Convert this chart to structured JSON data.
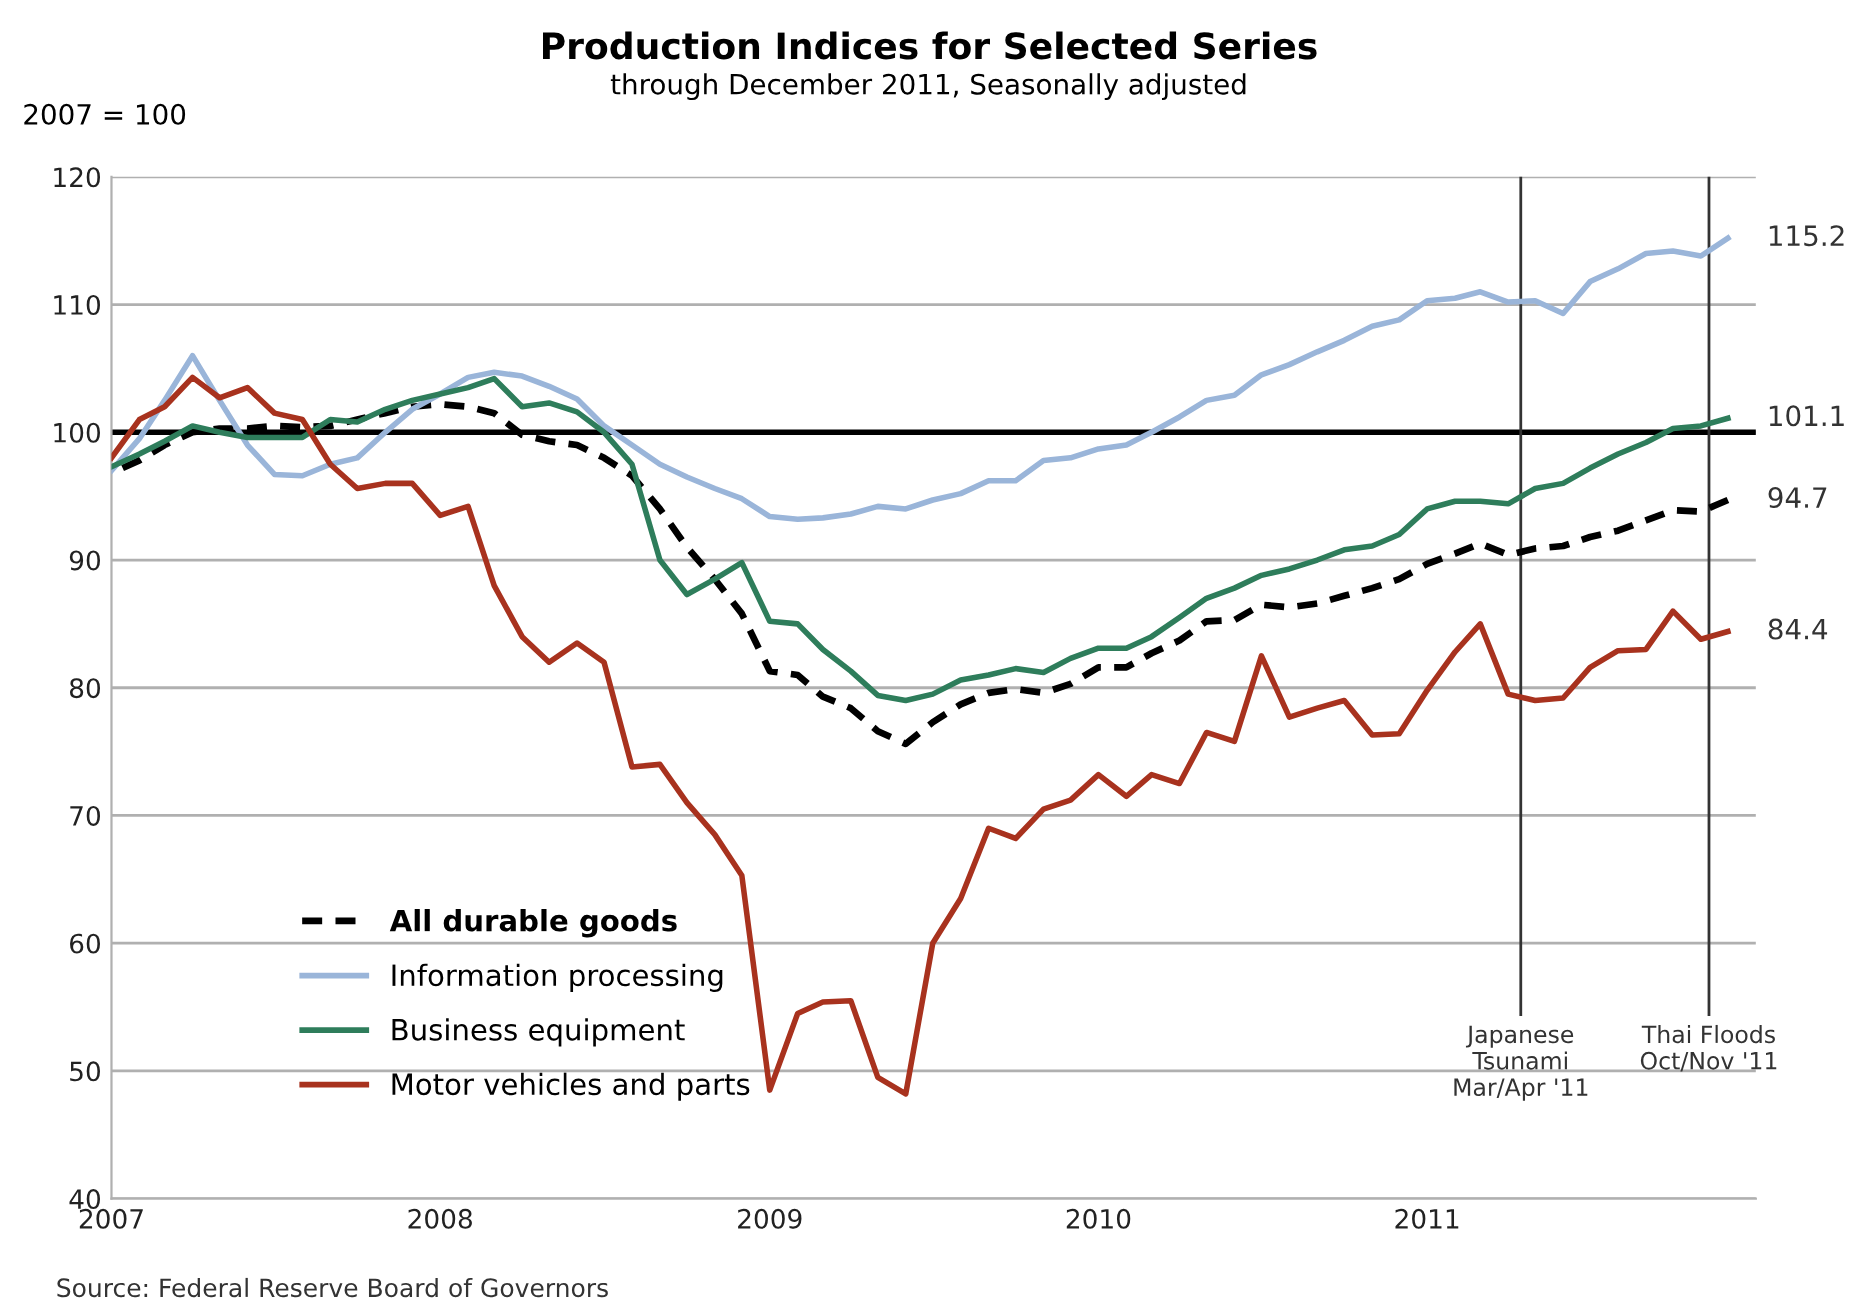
{
  "chart_data": {
    "type": "line",
    "title": "Production Indices for Selected Series",
    "subtitle": "through December 2011, Seasonally adjusted",
    "ylabel": "2007 = 100",
    "annotations": [
      "Source: Federal Reserve Board of Governors"
    ],
    "x": [
      "2007-01",
      "2007-02",
      "2007-03",
      "2007-04",
      "2007-05",
      "2007-06",
      "2007-07",
      "2007-08",
      "2007-09",
      "2007-10",
      "2007-11",
      "2007-12",
      "2008-01",
      "2008-02",
      "2008-03",
      "2008-04",
      "2008-05",
      "2008-06",
      "2008-07",
      "2008-08",
      "2008-09",
      "2008-10",
      "2008-11",
      "2008-12",
      "2009-01",
      "2009-02",
      "2009-03",
      "2009-04",
      "2009-05",
      "2009-06",
      "2009-07",
      "2009-08",
      "2009-09",
      "2009-10",
      "2009-11",
      "2009-12",
      "2010-01",
      "2010-02",
      "2010-03",
      "2010-04",
      "2010-05",
      "2010-06",
      "2010-07",
      "2010-08",
      "2010-09",
      "2010-10",
      "2010-11",
      "2010-12",
      "2011-01",
      "2011-02",
      "2011-03",
      "2011-04",
      "2011-05",
      "2011-06",
      "2011-07",
      "2011-08",
      "2011-09",
      "2011-10",
      "2011-11",
      "2011-12"
    ],
    "series": [
      {
        "name": "All durable goods",
        "color": "#000000",
        "line_style": "dashed",
        "values": [
          96.8,
          97.8,
          99,
          100,
          100.3,
          100.3,
          100.5,
          100.4,
          100.5,
          101,
          101.5,
          102,
          102.2,
          102,
          101.5,
          99.8,
          99.3,
          99,
          98,
          96.6,
          94,
          91,
          88.5,
          85.8,
          81.3,
          81,
          79.3,
          78.4,
          76.6,
          75.6,
          77.3,
          78.7,
          79.6,
          79.9,
          79.6,
          80.3,
          81.6,
          81.6,
          82.7,
          83.7,
          85.2,
          85.3,
          86.5,
          86.3,
          86.6,
          87.2,
          87.8,
          88.5,
          89.7,
          90.5,
          91.3,
          90.4,
          90.9,
          91.1,
          91.8,
          92.3,
          93.1,
          93.9,
          93.8,
          94.7
        ],
        "value_labels": [
          null,
          null,
          null,
          null,
          null,
          null,
          null,
          null,
          null,
          null,
          null,
          null,
          null,
          null,
          null,
          null,
          null,
          null,
          null,
          null,
          null,
          null,
          null,
          null,
          null,
          null,
          null,
          null,
          null,
          null,
          null,
          null,
          null,
          null,
          null,
          null,
          null,
          null,
          null,
          null,
          null,
          null,
          null,
          null,
          null,
          null,
          null,
          null,
          null,
          null,
          null,
          null,
          null,
          null,
          null,
          null,
          null,
          null,
          null,
          "94.7"
        ]
      },
      {
        "name": "Information processing",
        "color": "#9ab5d9",
        "line_style": "solid",
        "values": [
          97,
          99.5,
          102.5,
          106,
          102.5,
          99,
          96.7,
          96.6,
          97.5,
          98,
          100,
          101.8,
          103,
          104.3,
          104.7,
          104.4,
          103.6,
          102.6,
          100.5,
          99,
          97.5,
          96.5,
          95.6,
          94.8,
          93.4,
          93.2,
          93.3,
          93.6,
          94.2,
          94,
          94.7,
          95.2,
          96.2,
          96.2,
          97.8,
          98,
          98.7,
          99,
          100,
          101.2,
          102.5,
          102.9,
          104.5,
          105.3,
          106.3,
          107.2,
          108.3,
          108.8,
          110.3,
          110.5,
          111,
          110.2,
          110.3,
          109.3,
          111.8,
          112.8,
          114,
          114.2,
          113.8,
          115.2
        ],
        "value_labels": [
          null,
          null,
          null,
          null,
          null,
          null,
          null,
          null,
          null,
          null,
          null,
          null,
          null,
          null,
          null,
          null,
          null,
          null,
          null,
          null,
          null,
          null,
          null,
          null,
          null,
          null,
          null,
          null,
          null,
          null,
          null,
          null,
          null,
          null,
          null,
          null,
          null,
          null,
          null,
          null,
          null,
          null,
          null,
          null,
          null,
          null,
          null,
          null,
          null,
          null,
          null,
          null,
          null,
          null,
          null,
          null,
          null,
          null,
          null,
          "115.2"
        ]
      },
      {
        "name": "Business equipment",
        "color": "#2e7d5b",
        "line_style": "solid",
        "values": [
          97.3,
          98.3,
          99.3,
          100.5,
          100,
          99.6,
          99.6,
          99.6,
          101,
          100.8,
          101.8,
          102.5,
          103,
          103.5,
          104.2,
          102,
          102.3,
          101.6,
          100,
          97.5,
          90,
          87.3,
          88.5,
          89.8,
          85.2,
          85,
          83,
          81.3,
          79.4,
          79,
          79.5,
          80.6,
          81,
          81.5,
          81.2,
          82.3,
          83.1,
          83.1,
          84,
          85.5,
          87,
          87.8,
          88.8,
          89.3,
          90,
          90.8,
          91.1,
          92,
          94,
          94.6,
          94.6,
          94.4,
          95.6,
          96,
          97.2,
          98.3,
          99.2,
          100.3,
          100.5,
          101.1
        ],
        "value_labels": [
          null,
          null,
          null,
          null,
          null,
          null,
          null,
          null,
          null,
          null,
          null,
          null,
          null,
          null,
          null,
          null,
          null,
          null,
          null,
          null,
          null,
          null,
          null,
          null,
          null,
          null,
          null,
          null,
          null,
          null,
          null,
          null,
          null,
          null,
          null,
          null,
          null,
          null,
          null,
          null,
          null,
          null,
          null,
          null,
          null,
          null,
          null,
          null,
          null,
          null,
          null,
          null,
          null,
          null,
          null,
          null,
          null,
          null,
          null,
          "101.1"
        ]
      },
      {
        "name": "Motor vehicles and parts",
        "color": "#a8321e",
        "line_style": "solid",
        "values": [
          98,
          101,
          102,
          104.3,
          102.7,
          103.5,
          101.5,
          101,
          97.5,
          95.6,
          96,
          96,
          93.5,
          94.2,
          88,
          84,
          82,
          83.5,
          82,
          73.8,
          74,
          71,
          68.5,
          65.3,
          48.5,
          54.5,
          55.4,
          55.5,
          49.5,
          48.2,
          60,
          63.5,
          69,
          68.2,
          70.5,
          71.2,
          73.2,
          71.5,
          73.2,
          72.5,
          76.5,
          75.8,
          82.5,
          77.7,
          78.4,
          79,
          76.3,
          76.4,
          79.8,
          82.8,
          85,
          79.5,
          79,
          79.2,
          81.6,
          82.9,
          83,
          86,
          83.8,
          84.4
        ],
        "value_labels": [
          null,
          null,
          null,
          null,
          null,
          null,
          null,
          null,
          null,
          null,
          null,
          null,
          null,
          null,
          null,
          null,
          null,
          null,
          null,
          null,
          null,
          null,
          null,
          null,
          null,
          null,
          null,
          null,
          null,
          null,
          null,
          null,
          null,
          null,
          null,
          null,
          null,
          null,
          null,
          null,
          null,
          null,
          null,
          null,
          null,
          null,
          null,
          null,
          null,
          null,
          null,
          null,
          null,
          null,
          null,
          null,
          null,
          null,
          null,
          "84.4"
        ]
      }
    ],
    "xlim": [
      "2007-01",
      "2012-01"
    ],
    "xticks": [
      {
        "value": "2007-01",
        "label": "2007"
      },
      {
        "value": "2008-01",
        "label": "2008"
      },
      {
        "value": "2009-01",
        "label": "2009"
      },
      {
        "value": "2010-01",
        "label": "2010"
      },
      {
        "value": "2011-01",
        "label": "2011"
      }
    ],
    "ylim": [
      40,
      120
    ],
    "yticks": [
      40,
      50,
      60,
      70,
      80,
      90,
      100,
      110,
      120
    ],
    "ref_lines": [
      {
        "axis": "y",
        "value": 100,
        "color": "#000000"
      },
      {
        "axis": "x",
        "value": "2011-04-15",
        "label": "Japanese\nTsunami\nMar/Apr '11",
        "color": "#333333"
      },
      {
        "axis": "x",
        "value": "2011-11-10",
        "label": "Thai Floods\nOct/Nov '11",
        "color": "#333333"
      }
    ],
    "grid": "y",
    "legend": "bottom left",
    "marker": "none"
  }
}
